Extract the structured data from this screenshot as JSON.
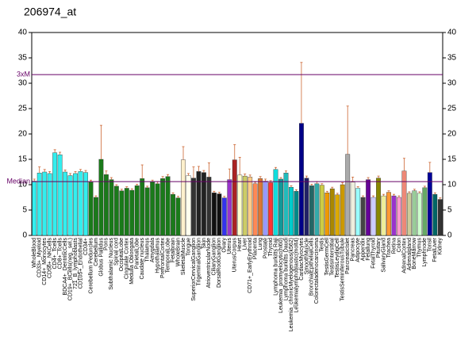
{
  "chart_data": {
    "type": "bar",
    "title": "206974_at",
    "categories": [
      "WholeBlood",
      "CD33+_Myeloid",
      "CD14+_Monocytes",
      "CD56+_NKCells",
      "CD4+_Tcells",
      "CD8+_Tcells",
      "BDCA4+_DentriticCells",
      "CD19+_BCells(neg._sel.)",
      "721_B_lymphoblasts",
      "CD105+_Endothelial",
      "CD34+",
      "Cerebellum Peduncles",
      "Cerebellum",
      "Globus Pallidus",
      "Pons",
      "Subthalamic Nucleus",
      "Spinal cord",
      "OccipitalLobe",
      "Cingulate Cortex",
      "Medulla Oblongata",
      "ParietalLobe",
      "Caudate nucleus",
      "Thalamus",
      "Amygdala",
      "Hypothalamus",
      "PrefrontalCortex",
      "TemporalLobe",
      "Fetalbrain",
      "WholeBrain",
      "SkeletalMuscle",
      "Tongue",
      "SuperiorCervicalGanglion",
      "TrigeminalGanglion",
      "Skin",
      "AtrioventricularNode",
      "CiliaryGanglion",
      "DorsalRootGanglion",
      "Ovary",
      "Uterus",
      "UterusCorpus",
      "Heart",
      "Liver",
      "CD71+_EarlyErythroid",
      "Placenta",
      "Lung",
      "Prostate",
      "Thyroid",
      "Lymphoma burkitts Raji",
      "Leukemia_promyelocytic(hl60)",
      "Lymphoma burkitts Daudi",
      "Leukemia_chronicMyelogenous(k562)",
      "Leukemialymphoblastic(molt4)",
      "CardiacMyocytes",
      "SmoothMuscle",
      "BronchialEpithelialCells",
      "Colorectaladenocarcinoma",
      "Testis",
      "TestisGermCell",
      "TestisInterstitial",
      "TestisLeydigCell",
      "TestisSeminiferousTubule",
      "PancreaticIslet",
      "Pancreas",
      "Adipocyte",
      "Appendix",
      "Fetallung",
      "FetalThyroid",
      "Pituitary",
      "SalivaryGland",
      "Trachea",
      "Retina",
      "Colon",
      "AdrenalCortex",
      "Adrenalgland",
      "BoneMarrow",
      "Thymus",
      "Lymphnode",
      "Tonsil",
      "FetalLiver",
      "Kidney"
    ],
    "values": [
      10.7,
      12.3,
      12.5,
      12.2,
      16.3,
      15.9,
      12.5,
      11.8,
      12.2,
      12.6,
      12.4,
      10.5,
      7.5,
      15.0,
      12.0,
      11.0,
      9.7,
      8.8,
      9.3,
      8.9,
      9.8,
      11.2,
      9.4,
      10.6,
      10.2,
      11.2,
      11.6,
      8.1,
      7.4,
      14.9,
      11.8,
      11.3,
      12.6,
      12.4,
      11.5,
      8.4,
      8.2,
      7.4,
      11.0,
      14.9,
      11.9,
      11.7,
      11.5,
      10.2,
      11.2,
      10.7,
      10.4,
      13.0,
      11.1,
      12.3,
      9.5,
      8.7,
      22.1,
      11.3,
      9.8,
      10.2,
      9.9,
      8.4,
      9.2,
      8.0,
      10.0,
      16.0,
      10.5,
      9.3,
      7.5,
      11.0,
      7.5,
      11.3,
      7.8,
      8.5,
      7.8,
      7.5,
      12.7,
      8.3,
      8.8,
      8.3,
      9.4,
      12.4,
      8.1,
      7.1
    ],
    "errors": [
      0.4,
      1.2,
      0.5,
      0.4,
      0.6,
      0.5,
      0.4,
      0.4,
      0.4,
      0.4,
      0.4,
      0.4,
      0.3,
      6.7,
      0.7,
      0.4,
      0.3,
      0.3,
      0.3,
      0.3,
      0.3,
      2.7,
      0.3,
      0.3,
      0.4,
      0.4,
      0.4,
      0.3,
      0.3,
      2.6,
      0.4,
      2.2,
      1.0,
      0.4,
      2.8,
      0.3,
      0.3,
      0.3,
      2.1,
      3.0,
      3.5,
      0.4,
      0.4,
      0.3,
      0.4,
      0.4,
      0.4,
      0.4,
      0.3,
      0.4,
      0.3,
      0.3,
      12.0,
      0.4,
      0.3,
      0.4,
      0.3,
      0.3,
      0.3,
      0.3,
      0.4,
      9.5,
      1.0,
      0.3,
      0.3,
      0.4,
      0.3,
      0.4,
      0.3,
      0.3,
      0.3,
      0.3,
      2.5,
      0.3,
      0.3,
      0.3,
      0.3,
      2.0,
      0.3,
      0.3
    ],
    "colors": [
      "#33eeee",
      "#33eeee",
      "#33eeee",
      "#33eeee",
      "#33eeee",
      "#33eeee",
      "#33eeee",
      "#33eeee",
      "#33eeee",
      "#33eeee",
      "#33eeee",
      "#1a7a1a",
      "#1a7a1a",
      "#1a7a1a",
      "#1a7a1a",
      "#1a7a1a",
      "#1a7a1a",
      "#1a7a1a",
      "#1a7a1a",
      "#1a7a1a",
      "#1a7a1a",
      "#1a7a1a",
      "#1a7a1a",
      "#1a7a1a",
      "#1a7a1a",
      "#1a7a1a",
      "#1a7a1a",
      "#1a7a1a",
      "#1a7a1a",
      "#fff0cc",
      "#ffffee",
      "#333333",
      "#222222",
      "#222222",
      "#333333",
      "#111111",
      "#111111",
      "#3333ee",
      "#9933cc",
      "#aa2222",
      "#ffffcc",
      "#cccc66",
      "#ffcc88",
      "#ff8855",
      "#dd7733",
      "#9999ff",
      "#ff3333",
      "#11dddd",
      "#119999",
      "#22bbbb",
      "#00cccc",
      "#008888",
      "#000088",
      "#222266",
      "#226666",
      "#33aaaa",
      "#cccc44",
      "#ee9900",
      "#aa8800",
      "#ddaa00",
      "#cc9900",
      "#aaaaaa",
      "#eeeedd",
      "#99ffff",
      "#444444",
      "#660099",
      "#ccccff",
      "#888800",
      "#eeee99",
      "#ff9933",
      "#9933cc",
      "#ff99cc",
      "#ee8877",
      "#cccc99",
      "#99cc99",
      "#ccffcc",
      "#66aa66",
      "#000099",
      "#006666",
      "#333333"
    ],
    "error_color": "#cc6633",
    "ylim": [
      0,
      40
    ],
    "yticks": [
      0,
      5,
      10,
      15,
      20,
      25,
      30,
      35,
      40
    ],
    "y2lim": [
      0,
      40
    ],
    "y2ticks": [
      0,
      5,
      10,
      15,
      20,
      25,
      30,
      35,
      40
    ],
    "annotations": [
      {
        "label": "3xM",
        "value": 31.7,
        "color": "#660066"
      },
      {
        "label": "Median",
        "value": 10.6,
        "color": "#660066"
      }
    ]
  }
}
